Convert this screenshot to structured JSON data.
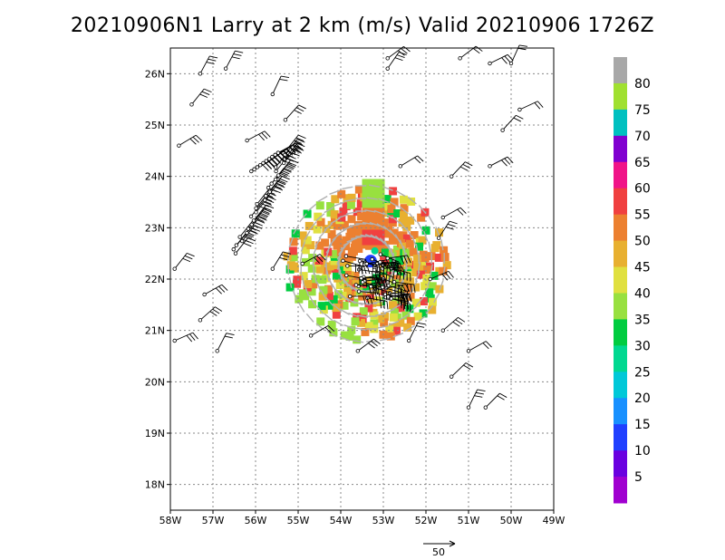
{
  "title": "20210906N1 Larry at 2 km (m/s) Valid 20210906 1726Z",
  "chart_data": {
    "type": "wind-map",
    "x_ticks": [
      "58W",
      "57W",
      "56W",
      "55W",
      "54W",
      "53W",
      "52W",
      "51W",
      "50W",
      "49W"
    ],
    "y_ticks": [
      "26N",
      "25N",
      "24N",
      "23N",
      "22N",
      "21N",
      "20N",
      "19N",
      "18N"
    ],
    "xlim": [
      -58,
      -49
    ],
    "ylim": [
      17.5,
      26.5
    ],
    "grid": "dotted",
    "center": {
      "lon": -53.4,
      "lat": 22.3
    },
    "colorbar": {
      "levels": [
        5,
        10,
        15,
        20,
        25,
        30,
        35,
        40,
        45,
        50,
        55,
        60,
        65,
        70,
        75,
        80
      ],
      "labels": [
        "5",
        "10",
        "15",
        "20",
        "25",
        "30",
        "35",
        "40",
        "45",
        "50",
        "55",
        "60",
        "65",
        "70",
        "75",
        "80"
      ],
      "colors": [
        "#a000d0",
        "#6a00e0",
        "#2040ff",
        "#1890ff",
        "#00c8d8",
        "#00d890",
        "#00cc40",
        "#98e040",
        "#e0e040",
        "#e8b030",
        "#ec8030",
        "#f04040",
        "#f01488",
        "#8000d0",
        "#00c0c0",
        "#a0e030",
        "#a8a8a8"
      ]
    },
    "reference_vector": {
      "label": "50",
      "speed": 50
    }
  }
}
